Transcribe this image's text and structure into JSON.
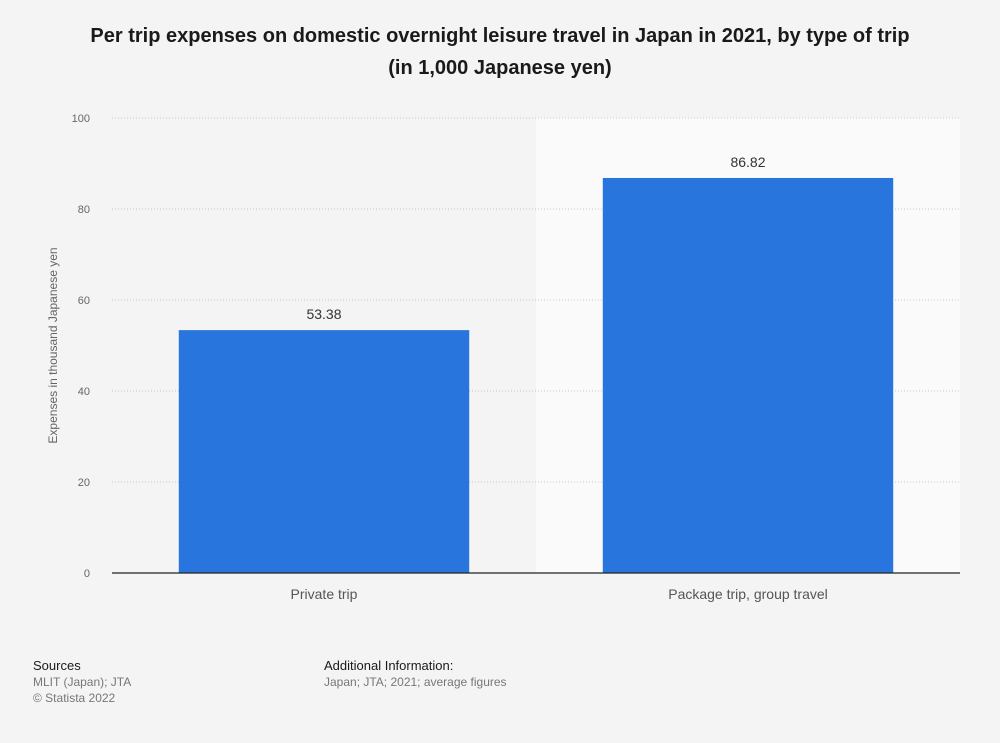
{
  "title_line1": "Per trip expenses on domestic overnight leisure travel in Japan in 2021, by type of trip",
  "title_line2": "(in 1,000 Japanese yen)",
  "chart_data": {
    "type": "bar",
    "categories": [
      "Private trip",
      "Package trip, group travel"
    ],
    "values": [
      53.38,
      86.82
    ],
    "value_labels": [
      "53.38",
      "86.82"
    ],
    "xlabel": "",
    "ylabel": "Expenses in thousand Japanese yen",
    "ylim": [
      0,
      100
    ],
    "yticks": [
      0,
      20,
      40,
      60,
      80,
      100
    ],
    "grid": true,
    "bar_color": "#2876dd"
  },
  "footer": {
    "sources_label": "Sources",
    "sources_line1": "MLIT (Japan); JTA",
    "sources_line2": "© Statista 2022",
    "addinfo_label": "Additional Information:",
    "addinfo_text": "Japan; JTA; 2021; average figures"
  }
}
